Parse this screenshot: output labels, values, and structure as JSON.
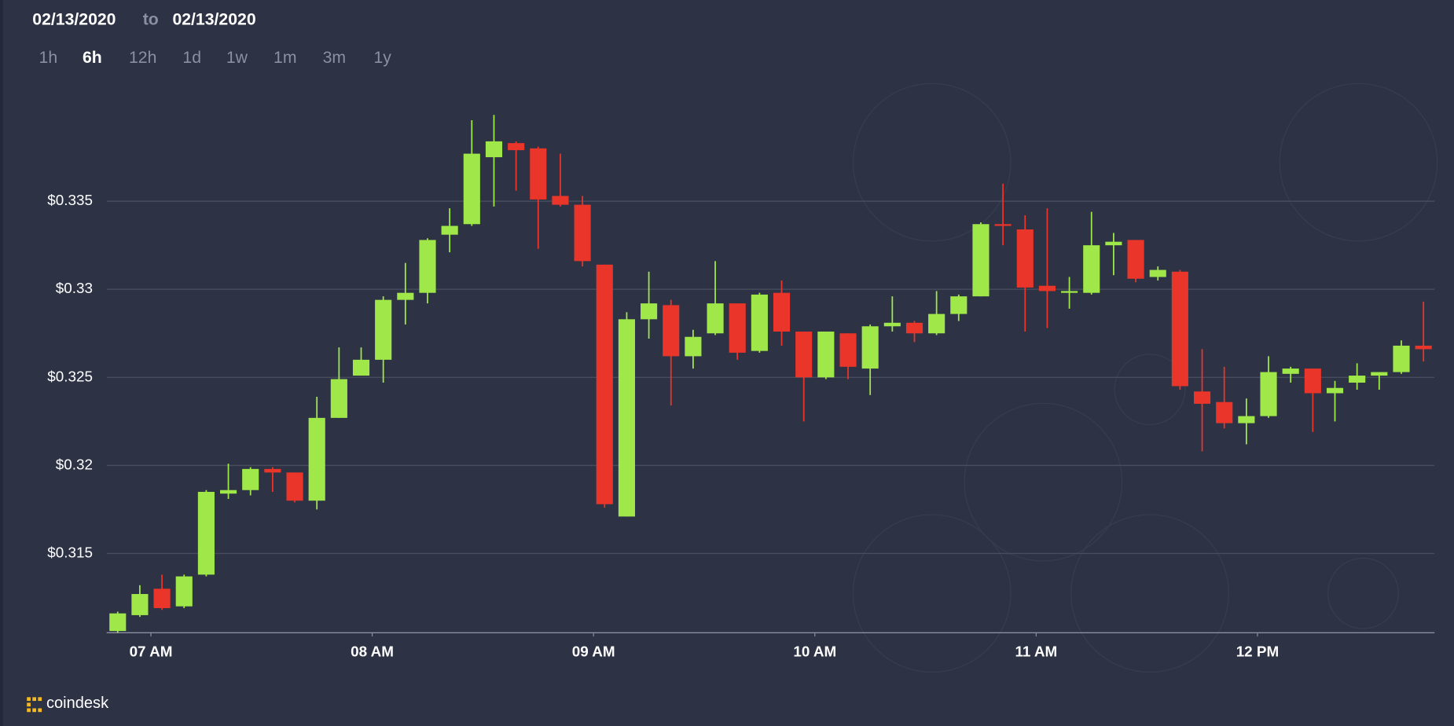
{
  "header": {
    "from": "02/13/2020",
    "to_word": "to",
    "to": "02/13/2020"
  },
  "ranges": [
    "1h",
    "6h",
    "12h",
    "1d",
    "1w",
    "1m",
    "3m",
    "1y"
  ],
  "selected_range": "6h",
  "logo": "coindesk",
  "chart_data": {
    "type": "candlestick",
    "up_color": "#a0e84a",
    "down_color": "#e9352a",
    "grid": true,
    "x": [
      6.85,
      6.95,
      7.05,
      7.15,
      7.25,
      7.35,
      7.45,
      7.55,
      7.65,
      7.75,
      7.85,
      7.95,
      8.05,
      8.15,
      8.25,
      8.35,
      8.45,
      8.55,
      8.65,
      8.75,
      8.85,
      8.95,
      9.05,
      9.15,
      9.25,
      9.35,
      9.45,
      9.55,
      9.65,
      9.75,
      9.85,
      9.95,
      10.05,
      10.15,
      10.25,
      10.35,
      10.45,
      10.55,
      10.65,
      10.75,
      10.85,
      10.95,
      11.05,
      11.15,
      11.25,
      11.35,
      11.45,
      11.55,
      11.65,
      11.75,
      11.85,
      11.95,
      12.05,
      12.15,
      12.25,
      12.35,
      12.45,
      12.55,
      12.65,
      12.75
    ],
    "open": [
      0.3106,
      0.3115,
      0.313,
      0.312,
      0.3138,
      0.3184,
      0.3186,
      0.3198,
      0.3196,
      0.318,
      0.3227,
      0.3251,
      0.326,
      0.3294,
      0.3298,
      0.3331,
      0.3337,
      0.3375,
      0.3383,
      0.338,
      0.3353,
      0.3348,
      0.3314,
      0.3171,
      0.3283,
      0.3291,
      0.3262,
      0.3275,
      0.3292,
      0.3265,
      0.3298,
      0.3276,
      0.325,
      0.3275,
      0.3255,
      0.3279,
      0.3281,
      0.3275,
      0.3286,
      0.3296,
      0.3337,
      0.3334,
      0.3302,
      0.3298,
      0.3298,
      0.3325,
      0.3328,
      0.3307,
      0.331,
      0.3242,
      0.3236,
      0.3224,
      0.3228,
      0.3252,
      0.3255,
      0.3241,
      0.3247,
      0.3251,
      0.3253,
      0.3268
    ],
    "high": [
      0.3117,
      0.3132,
      0.3138,
      0.3138,
      0.3186,
      0.3201,
      0.3199,
      0.3199,
      0.3196,
      0.3239,
      0.3267,
      0.3267,
      0.3296,
      0.3315,
      0.3329,
      0.3346,
      0.3396,
      0.3399,
      0.3384,
      0.3381,
      0.3377,
      0.3353,
      0.3314,
      0.3287,
      0.331,
      0.3294,
      0.3277,
      0.3316,
      0.3292,
      0.3298,
      0.3305,
      0.3276,
      0.3276,
      0.3275,
      0.328,
      0.3296,
      0.3282,
      0.3299,
      0.3297,
      0.3338,
      0.336,
      0.3342,
      0.3346,
      0.3307,
      0.3344,
      0.3332,
      0.3328,
      0.3313,
      0.3311,
      0.3266,
      0.3256,
      0.3238,
      0.3262,
      0.3256,
      0.3255,
      0.3248,
      0.3258,
      0.3253,
      0.3271,
      0.3293
    ],
    "low": [
      0.3105,
      0.3114,
      0.3118,
      0.3119,
      0.3137,
      0.3181,
      0.3183,
      0.3185,
      0.3179,
      0.3175,
      0.3227,
      0.3251,
      0.3247,
      0.328,
      0.3292,
      0.3321,
      0.3336,
      0.3347,
      0.3356,
      0.3323,
      0.3347,
      0.3313,
      0.3176,
      0.3171,
      0.3272,
      0.3234,
      0.3255,
      0.3274,
      0.326,
      0.3264,
      0.3268,
      0.3225,
      0.3249,
      0.3249,
      0.324,
      0.3276,
      0.327,
      0.3274,
      0.3282,
      0.3296,
      0.3325,
      0.3276,
      0.3278,
      0.3289,
      0.3297,
      0.3308,
      0.3304,
      0.3305,
      0.3243,
      0.3208,
      0.3221,
      0.3212,
      0.3227,
      0.3247,
      0.3219,
      0.3225,
      0.3243,
      0.3243,
      0.3252,
      0.3259
    ],
    "close": [
      0.3116,
      0.3127,
      0.3119,
      0.3137,
      0.3185,
      0.3186,
      0.3198,
      0.3196,
      0.318,
      0.3227,
      0.3249,
      0.326,
      0.3294,
      0.3298,
      0.3328,
      0.3336,
      0.3377,
      0.3384,
      0.3379,
      0.3351,
      0.3348,
      0.3316,
      0.3178,
      0.3283,
      0.3292,
      0.3262,
      0.3273,
      0.3292,
      0.3264,
      0.3297,
      0.3276,
      0.325,
      0.3276,
      0.3256,
      0.3279,
      0.3281,
      0.3275,
      0.3286,
      0.3296,
      0.3337,
      0.3336,
      0.3301,
      0.3299,
      0.3299,
      0.3325,
      0.3327,
      0.3306,
      0.3311,
      0.3245,
      0.3235,
      0.3224,
      0.3228,
      0.3253,
      0.3255,
      0.3241,
      0.3244,
      0.3251,
      0.3253,
      0.3268,
      0.3266
    ],
    "xlim": [
      6.8,
      12.8
    ],
    "xticks": [
      {
        "value": 7,
        "label": "07 AM"
      },
      {
        "value": 8,
        "label": "08 AM"
      },
      {
        "value": 9,
        "label": "09 AM"
      },
      {
        "value": 10,
        "label": "10 AM"
      },
      {
        "value": 11,
        "label": "11 AM"
      },
      {
        "value": 12,
        "label": "12 PM"
      }
    ],
    "ylim": [
      0.3105,
      0.3412
    ],
    "yticks": [
      {
        "value": 0.315,
        "label": "$0.315"
      },
      {
        "value": 0.32,
        "label": "$0.32"
      },
      {
        "value": 0.325,
        "label": "$0.325"
      },
      {
        "value": 0.33,
        "label": "$0.33"
      },
      {
        "value": 0.335,
        "label": "$0.335"
      }
    ]
  }
}
